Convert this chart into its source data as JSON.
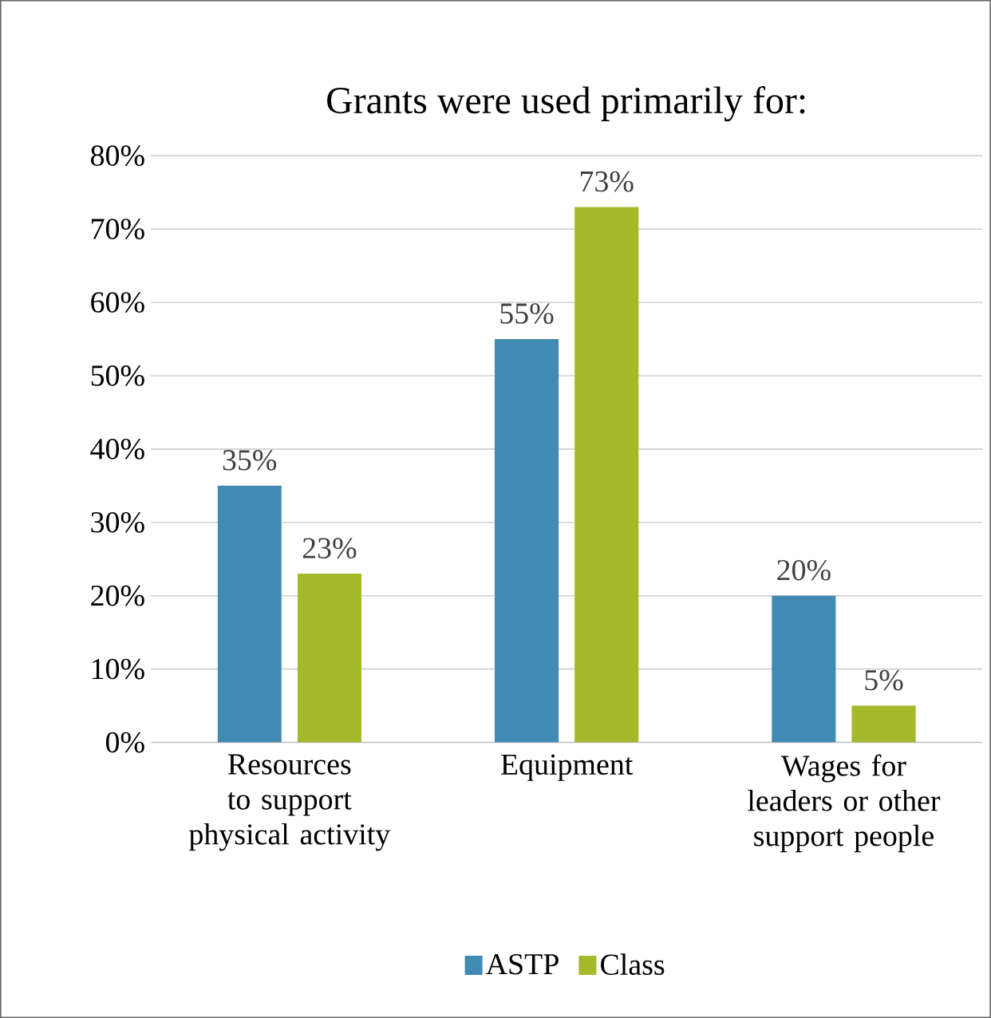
{
  "chart_data": {
    "type": "bar",
    "title": "Grants were used primarily for:",
    "categories": [
      "Resources to support physical activity",
      "Equipment",
      "Wages for leaders or other support people"
    ],
    "series": [
      {
        "name": "ASTP",
        "color": "#418ab3",
        "values": [
          35,
          55,
          20
        ],
        "value_labels": [
          "35%",
          "55%",
          "20%"
        ]
      },
      {
        "name": "Class",
        "color": "#a5b92a",
        "values": [
          23,
          73,
          5
        ],
        "value_labels": [
          "23%",
          "73%",
          "5%"
        ]
      }
    ],
    "ylim": [
      0,
      80
    ],
    "yticks": [
      {
        "value": 0,
        "label": "0%"
      },
      {
        "value": 10,
        "label": "10%"
      },
      {
        "value": 20,
        "label": "20%"
      },
      {
        "value": 30,
        "label": "30%"
      },
      {
        "value": 40,
        "label": "40%"
      },
      {
        "value": 50,
        "label": "50%"
      },
      {
        "value": 60,
        "label": "60%"
      },
      {
        "value": 70,
        "label": "70%"
      },
      {
        "value": 80,
        "label": "80%"
      }
    ],
    "grid": "y",
    "legend": "bottom"
  }
}
